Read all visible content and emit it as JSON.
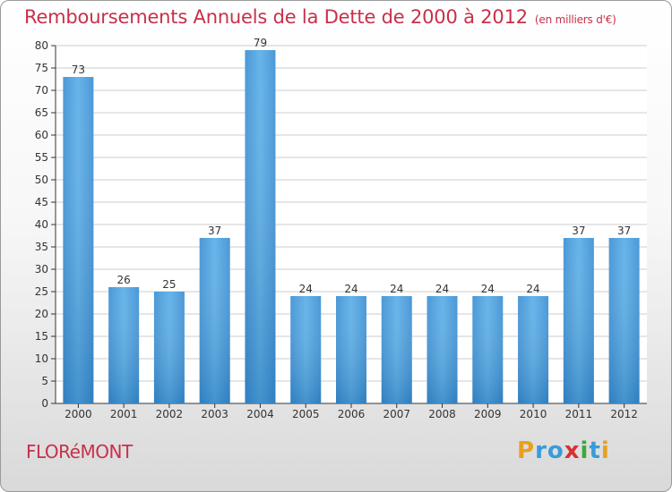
{
  "title": "Remboursements Annuels de la Dette de 2000 à 2012",
  "subtitle": "(en milliers d'€)",
  "place": "FLORéMONT",
  "logo": {
    "letters": [
      "P",
      "r",
      "o",
      "x",
      "i",
      "t",
      "i"
    ],
    "colors": [
      "#e8a020",
      "#3a9bd9",
      "#3a9bd9",
      "#d83030",
      "#3aaa3a",
      "#3a9bd9",
      "#e8a020"
    ]
  },
  "colors": {
    "bar": "#3b8fd3",
    "bar_light": "#5aaee8",
    "title": "#c8304a",
    "axis": "#333333",
    "grid": "#cccccc"
  },
  "chart_data": {
    "type": "bar",
    "title": "Remboursements Annuels de la Dette de 2000 à 2012",
    "subtitle": "(en milliers d'€)",
    "categories": [
      "2000",
      "2001",
      "2002",
      "2003",
      "2004",
      "2005",
      "2006",
      "2007",
      "2008",
      "2009",
      "2010",
      "2011",
      "2012"
    ],
    "values": [
      73,
      26,
      25,
      37,
      79,
      24,
      24,
      24,
      24,
      24,
      24,
      37,
      37
    ],
    "ylim": [
      0,
      80
    ],
    "yticks": [
      0,
      5,
      10,
      15,
      20,
      25,
      30,
      35,
      40,
      45,
      50,
      55,
      60,
      65,
      70,
      75,
      80
    ],
    "grid": true
  }
}
